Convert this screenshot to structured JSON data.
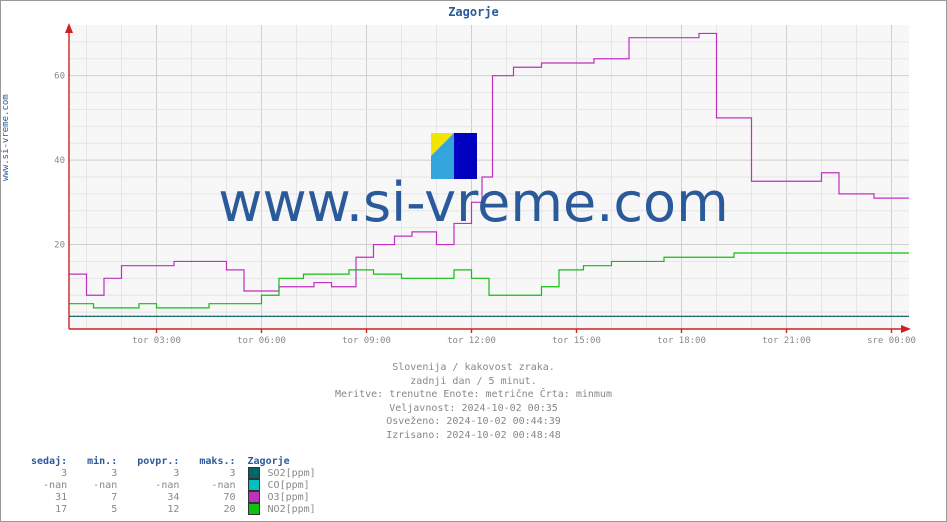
{
  "title": "Zagorje",
  "ylabel_link": "www.si-vreme.com",
  "watermark_text": "www.si-vreme.com",
  "watermark_icon_colors": {
    "top_left": "#f2e600",
    "bottom_left": "#34a4dd",
    "right": "#0000c0"
  },
  "chart": {
    "type": "step-line",
    "background": "#f7f7f7",
    "grid_major_color": "#cfcfcf",
    "grid_minor_color": "#e6e6e6",
    "axis_color": "#cc2222",
    "ylim": [
      0,
      72
    ],
    "yticks": [
      20,
      40,
      60
    ],
    "x_start_hour": 0.5,
    "x_end_hour": 24.5,
    "xticks": [
      {
        "h": 3,
        "label": "tor 03:00"
      },
      {
        "h": 6,
        "label": "tor 06:00"
      },
      {
        "h": 9,
        "label": "tor 09:00"
      },
      {
        "h": 12,
        "label": "tor 12:00"
      },
      {
        "h": 15,
        "label": "tor 15:00"
      },
      {
        "h": 18,
        "label": "tor 18:00"
      },
      {
        "h": 21,
        "label": "tor 21:00"
      },
      {
        "h": 24,
        "label": "sre 00:00"
      }
    ],
    "minor_x_step": 1,
    "series": {
      "SO2": {
        "color": "#006666",
        "label": "SO2[ppm]",
        "data": [
          [
            0.5,
            3
          ],
          [
            24.5,
            3
          ]
        ]
      },
      "CO": {
        "color": "#00c0c0",
        "label": "CO[ppm]",
        "data": []
      },
      "O3": {
        "color": "#c030c0",
        "label": "O3[ppm]",
        "data": [
          [
            0.5,
            13
          ],
          [
            1.0,
            13
          ],
          [
            1.0,
            8
          ],
          [
            1.5,
            8
          ],
          [
            1.5,
            12
          ],
          [
            2.0,
            12
          ],
          [
            2.0,
            15
          ],
          [
            3.5,
            15
          ],
          [
            3.5,
            16
          ],
          [
            5.0,
            16
          ],
          [
            5.0,
            14
          ],
          [
            5.5,
            14
          ],
          [
            5.5,
            9
          ],
          [
            6.5,
            9
          ],
          [
            6.5,
            10
          ],
          [
            7.5,
            10
          ],
          [
            7.5,
            11
          ],
          [
            8.0,
            11
          ],
          [
            8.0,
            10
          ],
          [
            8.7,
            10
          ],
          [
            8.7,
            17
          ],
          [
            9.2,
            17
          ],
          [
            9.2,
            20
          ],
          [
            9.8,
            20
          ],
          [
            9.8,
            22
          ],
          [
            10.3,
            22
          ],
          [
            10.3,
            23
          ],
          [
            11.0,
            23
          ],
          [
            11.0,
            20
          ],
          [
            11.5,
            20
          ],
          [
            11.5,
            25
          ],
          [
            12.0,
            25
          ],
          [
            12.0,
            30
          ],
          [
            12.3,
            30
          ],
          [
            12.3,
            36
          ],
          [
            12.6,
            36
          ],
          [
            12.6,
            60
          ],
          [
            13.2,
            60
          ],
          [
            13.2,
            62
          ],
          [
            14.0,
            62
          ],
          [
            14.0,
            63
          ],
          [
            15.5,
            63
          ],
          [
            15.5,
            64
          ],
          [
            16.5,
            64
          ],
          [
            16.5,
            69
          ],
          [
            18.5,
            69
          ],
          [
            18.5,
            70
          ],
          [
            19.0,
            70
          ],
          [
            19.0,
            50
          ],
          [
            20.0,
            50
          ],
          [
            20.0,
            35
          ],
          [
            22.0,
            35
          ],
          [
            22.0,
            37
          ],
          [
            22.5,
            37
          ],
          [
            22.5,
            32
          ],
          [
            23.5,
            32
          ],
          [
            23.5,
            31
          ],
          [
            24.5,
            31
          ]
        ]
      },
      "NO2": {
        "color": "#10c010",
        "label": "NO2[ppm]",
        "data": [
          [
            0.5,
            6
          ],
          [
            1.2,
            6
          ],
          [
            1.2,
            5
          ],
          [
            2.5,
            5
          ],
          [
            2.5,
            6
          ],
          [
            3.0,
            6
          ],
          [
            3.0,
            5
          ],
          [
            4.5,
            5
          ],
          [
            4.5,
            6
          ],
          [
            6.0,
            6
          ],
          [
            6.0,
            8
          ],
          [
            6.5,
            8
          ],
          [
            6.5,
            12
          ],
          [
            7.2,
            12
          ],
          [
            7.2,
            13
          ],
          [
            8.5,
            13
          ],
          [
            8.5,
            14
          ],
          [
            9.2,
            14
          ],
          [
            9.2,
            13
          ],
          [
            10.0,
            13
          ],
          [
            10.0,
            12
          ],
          [
            11.5,
            12
          ],
          [
            11.5,
            14
          ],
          [
            12.0,
            14
          ],
          [
            12.0,
            12
          ],
          [
            12.5,
            12
          ],
          [
            12.5,
            8
          ],
          [
            14.0,
            8
          ],
          [
            14.0,
            10
          ],
          [
            14.5,
            10
          ],
          [
            14.5,
            14
          ],
          [
            15.2,
            14
          ],
          [
            15.2,
            15
          ],
          [
            16.0,
            15
          ],
          [
            16.0,
            16
          ],
          [
            17.5,
            16
          ],
          [
            17.5,
            17
          ],
          [
            19.5,
            17
          ],
          [
            19.5,
            18
          ],
          [
            24.5,
            18
          ]
        ]
      }
    }
  },
  "meta": {
    "line1": "Slovenija / kakovost zraka.",
    "line2": "zadnji dan / 5 minut.",
    "line3": "Meritve: trenutne  Enote: metrične  Črta: minmum",
    "line4": "Veljavnost: 2024-10-02 00:35",
    "line5": "Osveženo: 2024-10-02 00:44:39",
    "line6": "Izrisano: 2024-10-02 00:48:48"
  },
  "legend": {
    "headers": {
      "now": "sedaj:",
      "min": "min.:",
      "avg": "povpr.:",
      "max": "maks.:",
      "loc": "Zagorje"
    },
    "rows": [
      {
        "now": "3",
        "min": "3",
        "avg": "3",
        "max": "3",
        "swatch": "#006666",
        "label": "SO2[ppm]"
      },
      {
        "now": "-nan",
        "min": "-nan",
        "avg": "-nan",
        "max": "-nan",
        "swatch": "#00c0c0",
        "label": "CO[ppm]"
      },
      {
        "now": "31",
        "min": "7",
        "avg": "34",
        "max": "70",
        "swatch": "#c030c0",
        "label": "O3[ppm]"
      },
      {
        "now": "17",
        "min": "5",
        "avg": "12",
        "max": "20",
        "swatch": "#10c010",
        "label": "NO2[ppm]"
      }
    ]
  }
}
